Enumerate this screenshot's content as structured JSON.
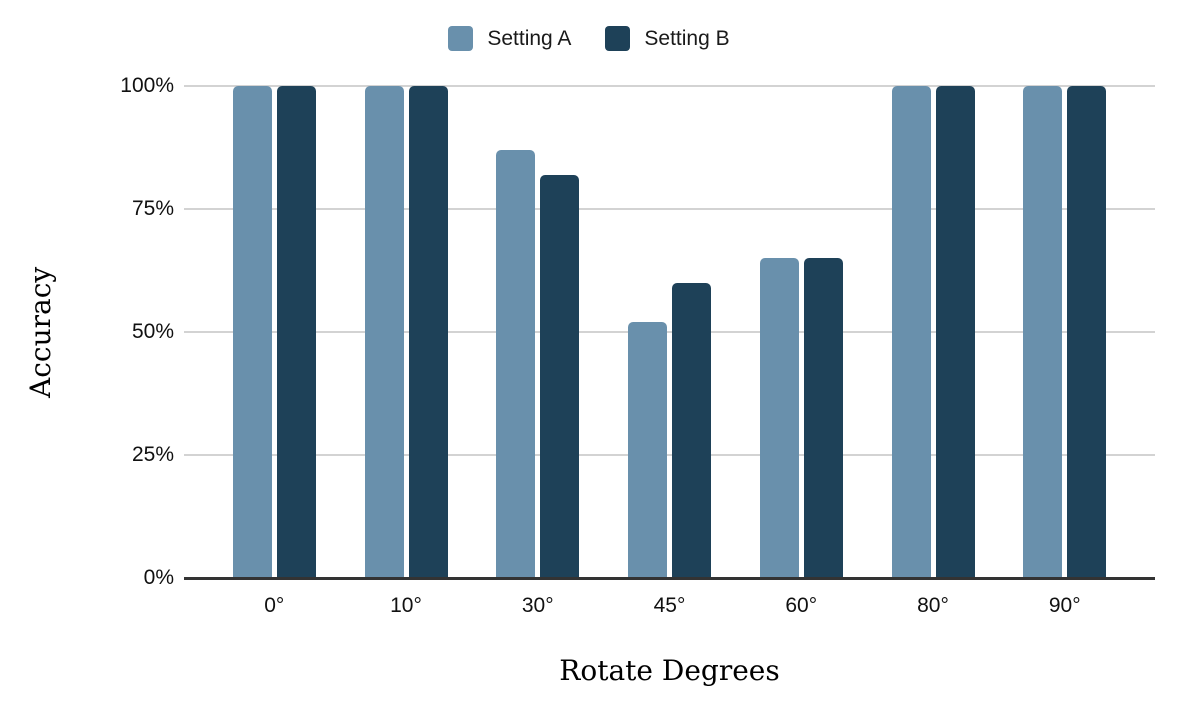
{
  "chart_data": {
    "type": "bar",
    "title": "",
    "categories": [
      "0°",
      "10°",
      "30°",
      "45°",
      "60°",
      "80°",
      "90°"
    ],
    "series": [
      {
        "name": "Setting A",
        "color": "#6990ac",
        "values": [
          100,
          100,
          87,
          52,
          65,
          100,
          100
        ]
      },
      {
        "name": "Setting B",
        "color": "#1e4158",
        "values": [
          100,
          100,
          82,
          60,
          65,
          100,
          100
        ]
      }
    ],
    "xlabel": "Rotate Degrees",
    "ylabel": "Accuracy",
    "yticks": [
      "0%",
      "25%",
      "50%",
      "75%",
      "100%"
    ],
    "ylim": [
      0,
      100
    ],
    "grid": "horizontal",
    "legend_position": "top-center",
    "style": {
      "gridline_color": "#d3d3d3",
      "axis_line_color": "#333333",
      "tick_label_color": "#111111",
      "legend_text_color": "#1a1a1a",
      "background": "#ffffff"
    }
  }
}
